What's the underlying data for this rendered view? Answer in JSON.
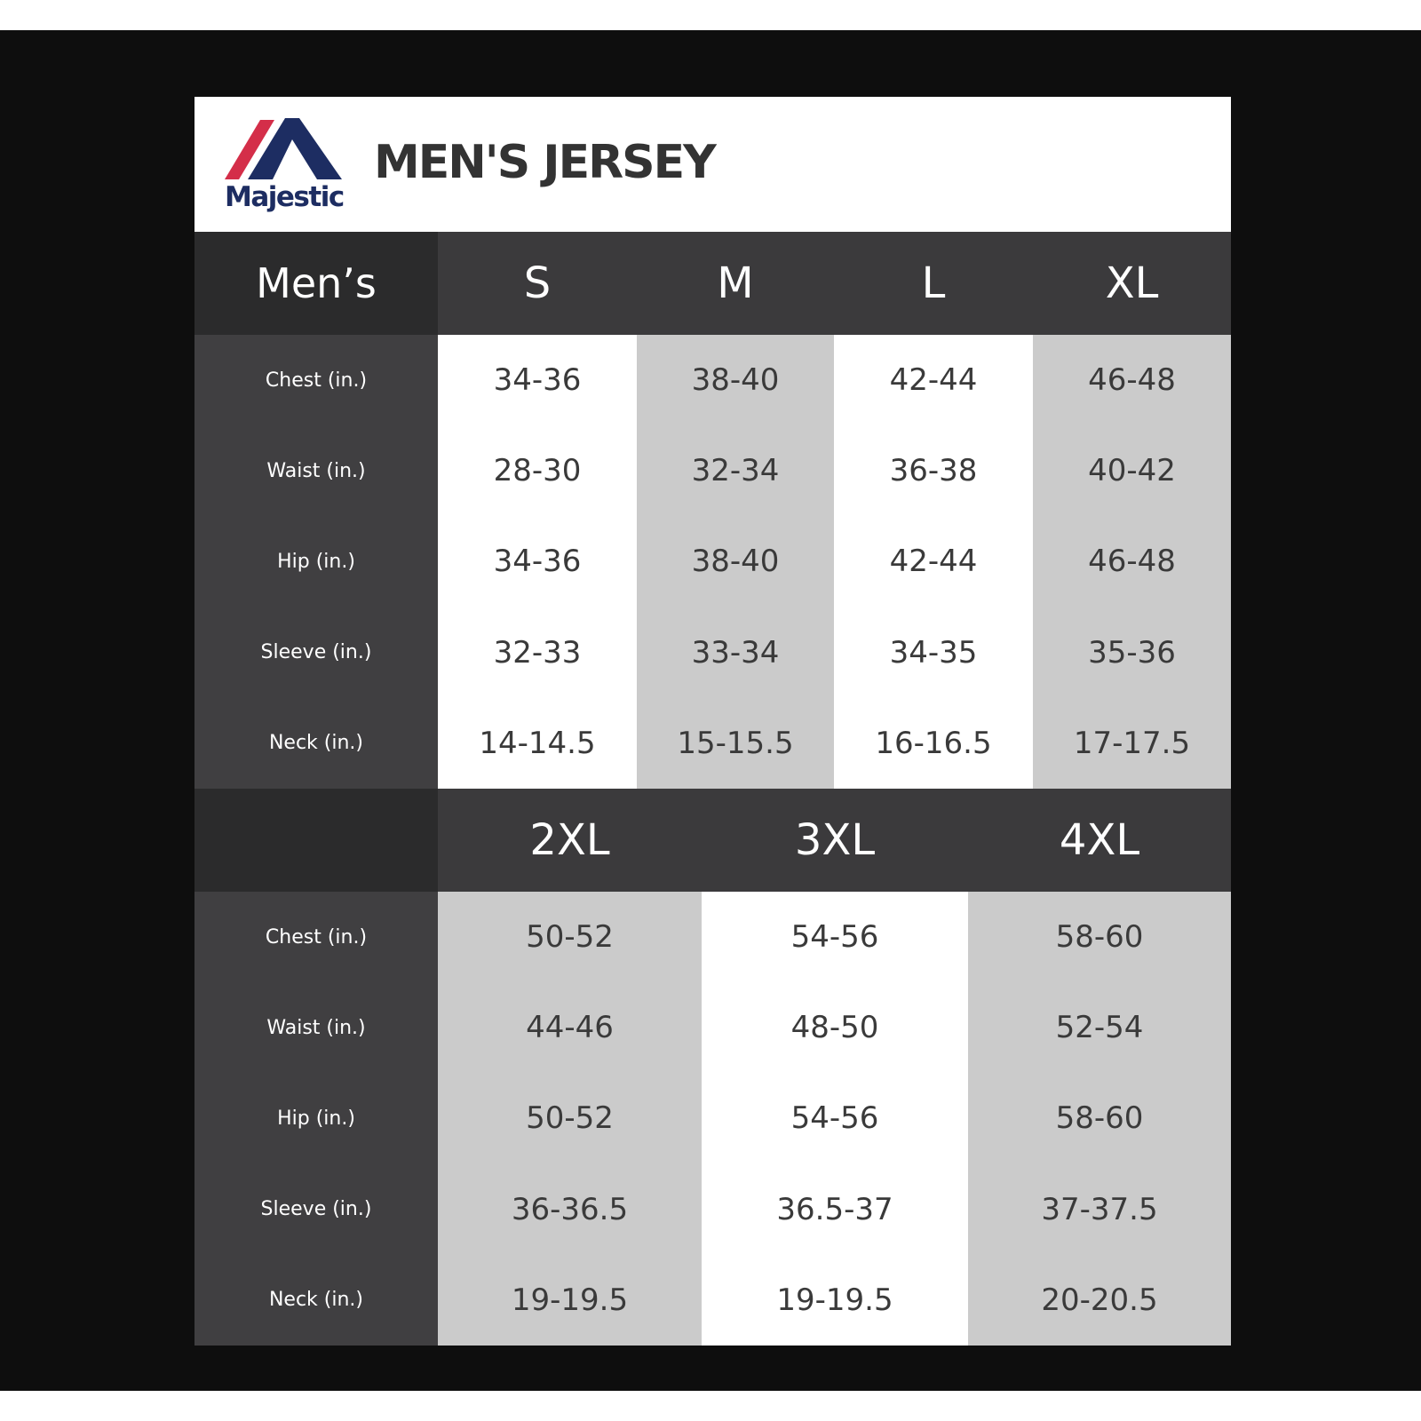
{
  "brand": {
    "name": "Majestic",
    "colors": {
      "red": "#d42e49",
      "navy": "#1d2d62"
    }
  },
  "title": "MEN'S JERSEY",
  "corner_label": "Men’s",
  "row_labels": [
    "Chest (in.)",
    "Waist (in.)",
    "Hip (in.)",
    "Sleeve (in.)",
    "Neck (in.)"
  ],
  "table1": {
    "sizes": [
      "S",
      "M",
      "L",
      "XL"
    ],
    "columns": [
      [
        "34-36",
        "28-30",
        "34-36",
        "32-33",
        "14-14.5"
      ],
      [
        "38-40",
        "32-34",
        "38-40",
        "33-34",
        "15-15.5"
      ],
      [
        "42-44",
        "36-38",
        "42-44",
        "34-35",
        "16-16.5"
      ],
      [
        "46-48",
        "40-42",
        "46-48",
        "35-36",
        "17-17.5"
      ]
    ]
  },
  "table2": {
    "sizes": [
      "2XL",
      "3XL",
      "4XL"
    ],
    "columns": [
      [
        "50-52",
        "44-46",
        "50-52",
        "36-36.5",
        "19-19.5"
      ],
      [
        "54-56",
        "48-50",
        "54-56",
        "36.5-37",
        "19-19.5"
      ],
      [
        "58-60",
        "52-54",
        "58-60",
        "37-37.5",
        "20-20.5"
      ]
    ]
  }
}
